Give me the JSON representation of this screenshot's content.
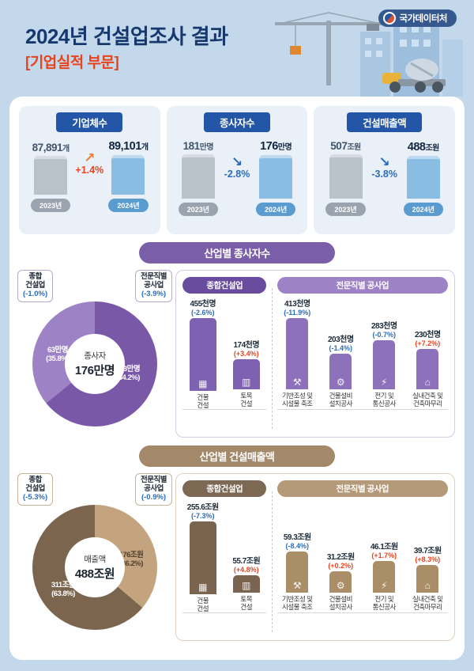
{
  "header": {
    "title": "2024년 건설업조사 결과",
    "subtitle": "[기업실적 부문]",
    "logo": "국가데이터처"
  },
  "icons": {
    "building": "▦",
    "civil": "▥",
    "foundation": "⚒",
    "equipment": "⚙",
    "electric": "⚡",
    "interior": "⌂",
    "trend_up": "↗",
    "trend_down": "↘"
  },
  "stats": [
    {
      "title": "기업체수",
      "prev": "87,891",
      "prev_unit": "개",
      "curr": "89,101",
      "curr_unit": "개",
      "change": "+1.4%",
      "trend": "up",
      "years": [
        "2023년",
        "2024년"
      ]
    },
    {
      "title": "종사자수",
      "prev": "181",
      "prev_unit": "만명",
      "curr": "176",
      "curr_unit": "만명",
      "change": "-2.8%",
      "trend": "down",
      "years": [
        "2023년",
        "2024년"
      ]
    },
    {
      "title": "건설매출액",
      "prev": "507",
      "prev_unit": "조원",
      "curr": "488",
      "curr_unit": "조원",
      "change": "-3.8%",
      "trend": "down",
      "years": [
        "2023년",
        "2024년"
      ]
    }
  ],
  "workers": {
    "section_title": "산업별 종사자수",
    "donut_center_label": "종사자",
    "donut_center_value": "176만명",
    "donut": {
      "shares": [
        64.2,
        35.8
      ],
      "colors": [
        "#7a58a8",
        "#9d82c6"
      ]
    },
    "callouts": [
      {
        "line1": "종합",
        "line2": "건설업",
        "change": "(-1.0%)"
      },
      {
        "line1": "전문직별",
        "line2": "공사업",
        "change": "(-3.9%)"
      }
    ],
    "ring_labels": [
      {
        "value": "63만명",
        "share": "(35.8%)"
      },
      {
        "value": "113만명",
        "share": "(64.2%)"
      }
    ],
    "groups": [
      {
        "title": "종합건설업",
        "bars": [
          {
            "value": "455천명",
            "change": "(-2.6%)",
            "label1": "건물",
            "label2": "건설"
          },
          {
            "value": "174천명",
            "change": "(+3.4%)",
            "label1": "토목",
            "label2": "건설"
          }
        ]
      },
      {
        "title": "전문직별 공사업",
        "bars": [
          {
            "value": "413천명",
            "change": "(-11.9%)",
            "label1": "기반조성 및",
            "label2": "시설물 축조"
          },
          {
            "value": "203천명",
            "change": "(-1.4%)",
            "label1": "건물설비",
            "label2": "설치공사"
          },
          {
            "value": "283천명",
            "change": "(-0.7%)",
            "label1": "전기 및",
            "label2": "통신공사"
          },
          {
            "value": "230천명",
            "change": "(+7.2%)",
            "label1": "실내건축 및",
            "label2": "건축마무리"
          }
        ]
      }
    ]
  },
  "revenue": {
    "section_title": "산업별 건설매출액",
    "donut_center_label": "매출액",
    "donut_center_value": "488조원",
    "donut": {
      "shares": [
        36.2,
        63.8
      ],
      "colors": [
        "#c3a47e",
        "#7b654f"
      ]
    },
    "callouts": [
      {
        "line1": "종합",
        "line2": "건설업",
        "change": "(-5.3%)"
      },
      {
        "line1": "전문직별",
        "line2": "공사업",
        "change": "(-0.9%)"
      }
    ],
    "ring_labels": [
      {
        "value": "311조원",
        "share": "(63.8%)"
      },
      {
        "value": "176조원",
        "share": "(36.2%)"
      }
    ],
    "groups": [
      {
        "title": "종합건설업",
        "bars": [
          {
            "value": "255.6조원",
            "change": "(-7.3%)",
            "label1": "건물",
            "label2": "건설"
          },
          {
            "value": "55.7조원",
            "change": "(+4.8%)",
            "label1": "토목",
            "label2": "건설"
          }
        ]
      },
      {
        "title": "전문직별 공사업",
        "bars": [
          {
            "value": "59.3조원",
            "change": "(-8.4%)",
            "label1": "기반조성 및",
            "label2": "시설물 축조"
          },
          {
            "value": "31.2조원",
            "change": "(+0.2%)",
            "label1": "건물설비",
            "label2": "설치공사"
          },
          {
            "value": "46.1조원",
            "change": "(+1.7%)",
            "label1": "전기 및",
            "label2": "통신공사"
          },
          {
            "value": "39.7조원",
            "change": "(+8.3%)",
            "label1": "실내건축 및",
            "label2": "건축마무리"
          }
        ]
      }
    ]
  },
  "chart_data": [
    {
      "type": "bar",
      "title": "기업체수(개)",
      "categories": [
        "2023년",
        "2024년"
      ],
      "values": [
        87891,
        89101
      ],
      "change_pct": 1.4
    },
    {
      "type": "bar",
      "title": "종사자수(만명)",
      "categories": [
        "2023년",
        "2024년"
      ],
      "values": [
        181,
        176
      ],
      "change_pct": -2.8
    },
    {
      "type": "bar",
      "title": "건설매출액(조원)",
      "categories": [
        "2023년",
        "2024년"
      ],
      "values": [
        507,
        488
      ],
      "change_pct": -3.8
    },
    {
      "type": "pie",
      "title": "산업별 종사자수",
      "categories": [
        "전문직별 공사업",
        "종합건설업"
      ],
      "values": [
        113,
        63
      ],
      "shares_pct": [
        64.2,
        35.8
      ],
      "unit": "만명",
      "total": "176만명",
      "changes_pct": [
        -3.9,
        -1.0
      ]
    },
    {
      "type": "bar",
      "title": "종합건설업 종사자수(천명)",
      "categories": [
        "건물건설",
        "토목건설"
      ],
      "values": [
        455,
        174
      ],
      "changes_pct": [
        -2.6,
        3.4
      ]
    },
    {
      "type": "bar",
      "title": "전문직별 공사업 종사자수(천명)",
      "categories": [
        "기반조성 및 시설물 축조",
        "건물설비 설치공사",
        "전기 및 통신공사",
        "실내건축 및 건축마무리"
      ],
      "values": [
        413,
        203,
        283,
        230
      ],
      "changes_pct": [
        -11.9,
        -1.4,
        -0.7,
        7.2
      ]
    },
    {
      "type": "pie",
      "title": "산업별 건설매출액",
      "categories": [
        "전문직별 공사업",
        "종합건설업"
      ],
      "values": [
        176,
        311
      ],
      "shares_pct": [
        36.2,
        63.8
      ],
      "unit": "조원",
      "total": "488조원",
      "changes_pct": [
        -0.9,
        -5.3
      ]
    },
    {
      "type": "bar",
      "title": "종합건설업 건설매출액(조원)",
      "categories": [
        "건물건설",
        "토목건설"
      ],
      "values": [
        255.6,
        55.7
      ],
      "changes_pct": [
        -7.3,
        4.8
      ]
    },
    {
      "type": "bar",
      "title": "전문직별 공사업 건설매출액(조원)",
      "categories": [
        "기반조성 및 시설물 축조",
        "건물설비 설치공사",
        "전기 및 통신공사",
        "실내건축 및 건축마무리"
      ],
      "values": [
        59.3,
        31.2,
        46.1,
        39.7
      ],
      "changes_pct": [
        -8.4,
        0.2,
        1.7,
        8.3
      ]
    }
  ]
}
